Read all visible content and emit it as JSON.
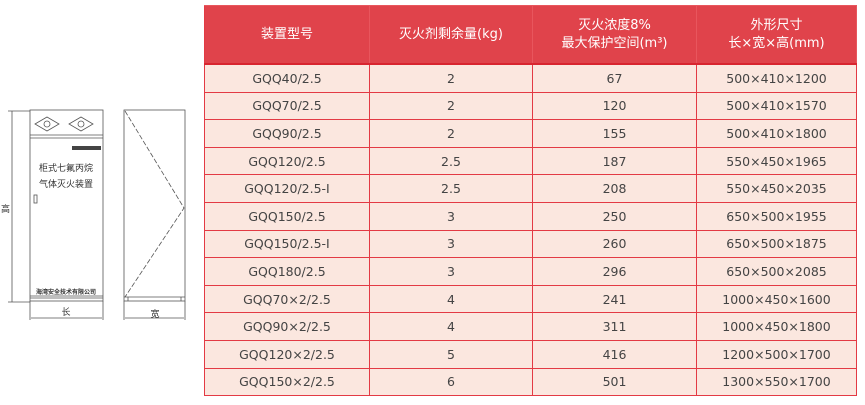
{
  "drawing": {
    "cabinet_line1": "柜式七氟丙烷",
    "cabinet_line2": "气体灭火装置",
    "company": "海湾安全技术有限公司",
    "height_label": "高",
    "length_label": "长",
    "width_label": "宽"
  },
  "table": {
    "headers": [
      {
        "line1": "装置型号",
        "line2": ""
      },
      {
        "line1": "灭火剂剩余量(kg)",
        "line2": ""
      },
      {
        "line1": "灭火浓度8%",
        "line2": "最大保护空间(m³)"
      },
      {
        "line1": "外形尺寸",
        "line2": "长×宽×高(mm)"
      }
    ],
    "rows": [
      [
        "GQQ40/2.5",
        "2",
        "67",
        "500×410×1200"
      ],
      [
        "GQQ70/2.5",
        "2",
        "120",
        "500×410×1570"
      ],
      [
        "GQQ90/2.5",
        "2",
        "155",
        "500×410×1800"
      ],
      [
        "GQQ120/2.5",
        "2.5",
        "187",
        "550×450×1965"
      ],
      [
        "GQQ120/2.5-I",
        "2.5",
        "208",
        "550×450×2035"
      ],
      [
        "GQQ150/2.5",
        "3",
        "250",
        "650×500×1955"
      ],
      [
        "GQQ150/2.5-I",
        "3",
        "260",
        "650×500×1875"
      ],
      [
        "GQQ180/2.5",
        "3",
        "296",
        "650×500×2085"
      ],
      [
        "GQQ70×2/2.5",
        "4",
        "241",
        "1000×450×1600"
      ],
      [
        "GQQ90×2/2.5",
        "4",
        "311",
        "1000×450×1800"
      ],
      [
        "GQQ120×2/2.5",
        "5",
        "416",
        "1200×500×1700"
      ],
      [
        "GQQ150×2/2.5",
        "6",
        "501",
        "1300×550×1700"
      ]
    ]
  },
  "colors": {
    "header_bg": "#e0434b",
    "row_bg": "#fbe7df",
    "grid": "#e33a44"
  }
}
